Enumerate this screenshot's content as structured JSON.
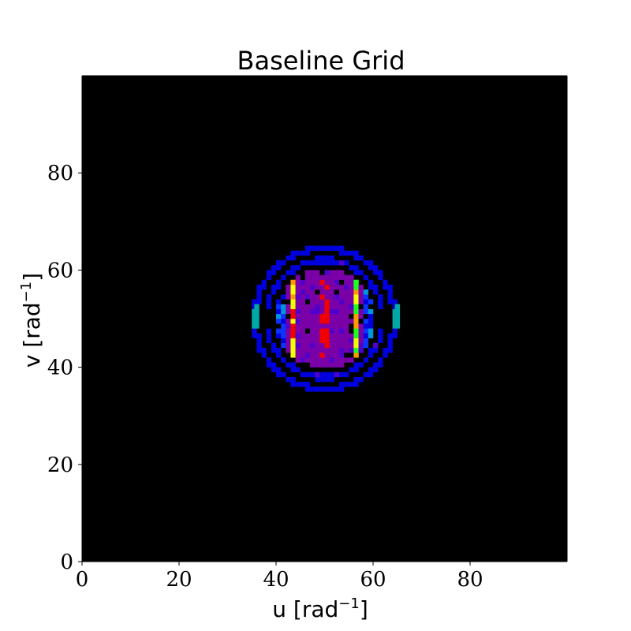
{
  "chart_data": {
    "type": "heatmap",
    "title": "Baseline Grid",
    "xlabel": "u [rad",
    "ylabel": "v [rad",
    "label_superscript": "−1",
    "label_close": "]",
    "xlim": [
      0,
      100
    ],
    "ylim": [
      0,
      100
    ],
    "x_ticks": [
      0,
      20,
      40,
      60,
      80
    ],
    "y_ticks": [
      0,
      20,
      40,
      60,
      80
    ],
    "grid": false,
    "colormap": "nipy_spectral",
    "background_color": "#000000",
    "colorbar": false,
    "center": [
      50,
      50
    ],
    "inner_disk_radius": 10.5,
    "ring_radii": [
      12.5,
      15
    ],
    "high_value_vertical_bands": [
      {
        "u": 43,
        "v_range": [
          42,
          58
        ]
      },
      {
        "u": 50,
        "v_range": [
          42,
          58
        ]
      },
      {
        "u": 56.5,
        "v_range": [
          42,
          58
        ]
      },
      {
        "u": 63,
        "v_range": [
          44,
          56
        ]
      },
      {
        "u": 37,
        "v_range": [
          44,
          56
        ]
      }
    ],
    "edge_highlight_cells": [
      {
        "u": 35.5,
        "v": 50
      },
      {
        "u": 64.5,
        "v": 50
      }
    ]
  }
}
